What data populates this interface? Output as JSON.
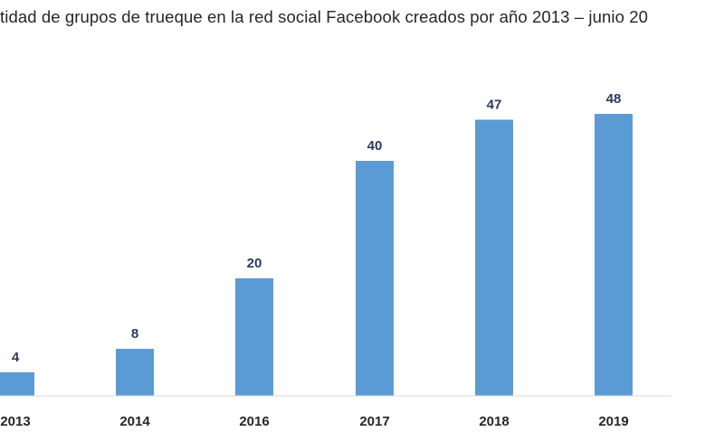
{
  "chart_data": {
    "type": "bar",
    "title": "tidad de grupos de trueque en la red social Facebook creados por año 2013 – junio 20",
    "categories": [
      "2013",
      "2014",
      "2016",
      "2017",
      "2018",
      "2019"
    ],
    "values": [
      4,
      8,
      20,
      40,
      47,
      48
    ],
    "xlabel": "",
    "ylabel": "",
    "ylim": [
      0,
      48
    ],
    "grid": false,
    "legend": "none",
    "data_labels": true,
    "bar_color": "#5b9bd5",
    "label_color": "#2a3a5c",
    "axis_color": "#d9d9d9"
  }
}
